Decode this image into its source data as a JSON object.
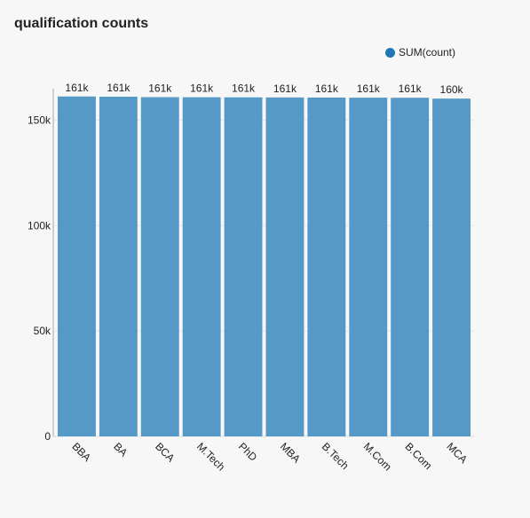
{
  "chart_data": {
    "type": "bar",
    "title": "qualification counts",
    "xlabel": "",
    "ylabel": "",
    "categories": [
      "BBA",
      "BA",
      "BCA",
      "M.Tech",
      "PhD",
      "MBA",
      "B.Tech",
      "M.Com",
      "B.Com",
      "MCA"
    ],
    "series": [
      {
        "name": "SUM(count)",
        "values": [
          161300,
          161200,
          161000,
          160950,
          160900,
          160850,
          160800,
          160750,
          160700,
          160300
        ],
        "data_labels": [
          "161k",
          "161k",
          "161k",
          "161k",
          "161k",
          "161k",
          "161k",
          "161k",
          "161k",
          "160k"
        ]
      }
    ],
    "ylim": [
      0,
      165000
    ],
    "yticks": [
      0,
      50000,
      100000,
      150000
    ],
    "ytick_labels": [
      "0",
      "50k",
      "100k",
      "150k"
    ],
    "legend_position": "top-right",
    "grid": true,
    "bar_color": "#5599c6",
    "legend_color": "#1f77b4"
  }
}
